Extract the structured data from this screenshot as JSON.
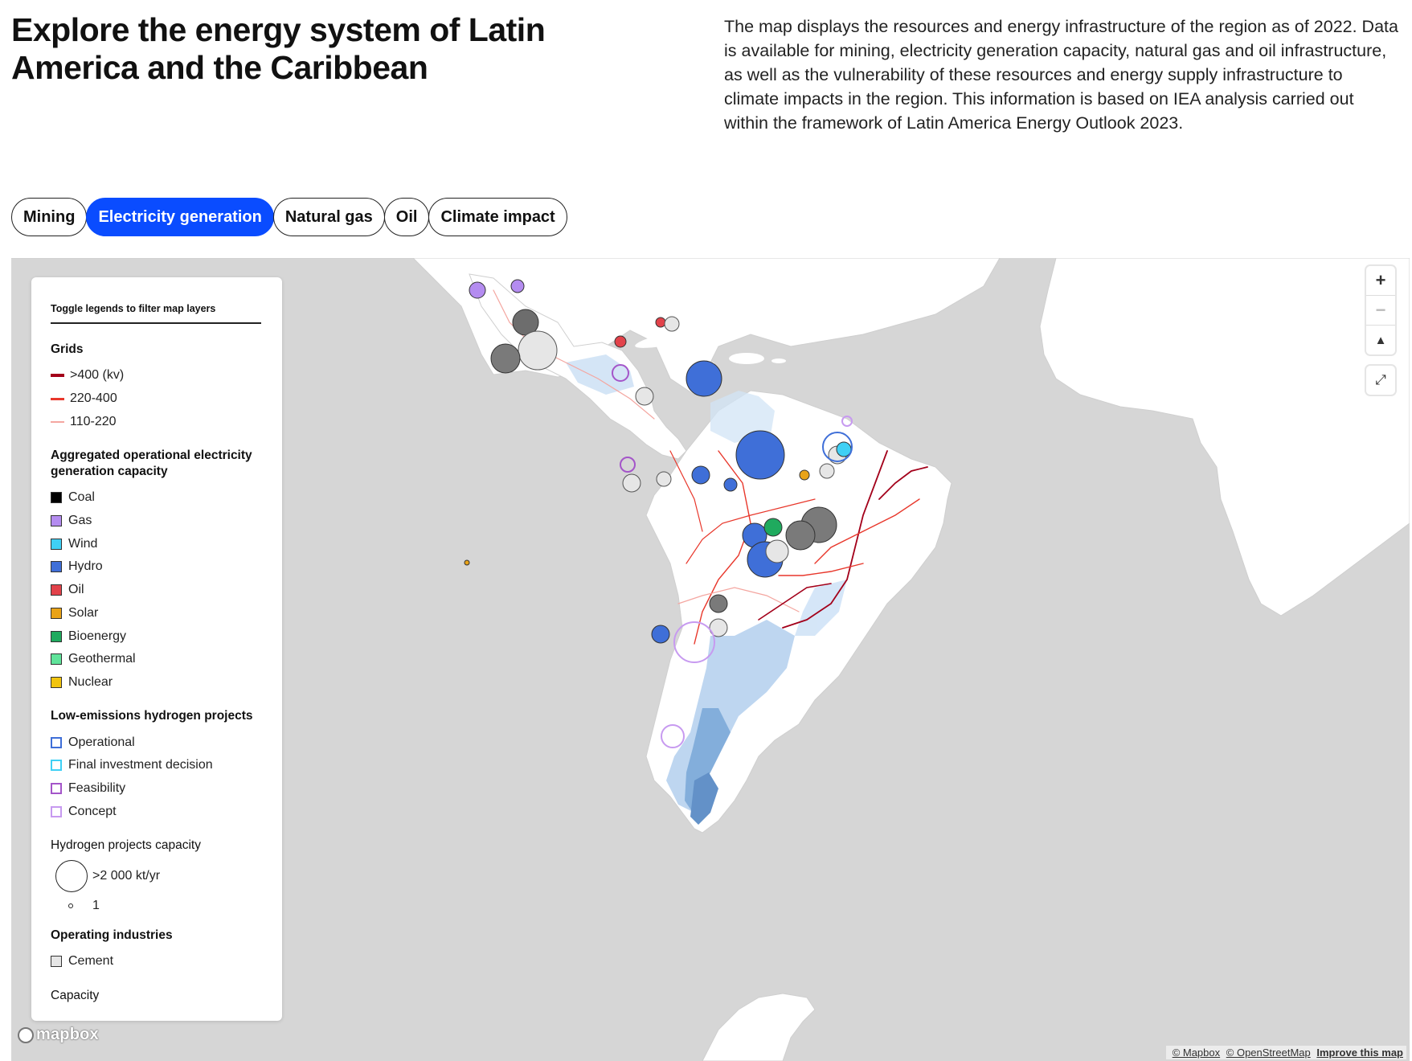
{
  "header": {
    "title": "Explore the energy system of Latin America and the Caribbean",
    "description": "The map displays the resources and energy infrastructure of the region as of 2022. Data is available for mining, electricity generation capacity, natural gas and oil infrastructure, as well as the vulnerability of these resources and energy supply infrastructure to climate impacts in the region. This information is based on IEA analysis carried out within the framework of Latin America Energy Outlook 2023."
  },
  "tabs": [
    {
      "label": "Mining",
      "active": false
    },
    {
      "label": "Electricity generation",
      "active": true
    },
    {
      "label": "Natural gas",
      "active": false
    },
    {
      "label": "Oil",
      "active": false
    },
    {
      "label": "Climate impact",
      "active": false
    }
  ],
  "legend": {
    "toggle_hint": "Toggle legends to filter map layers",
    "grids": {
      "title": "Grids",
      "items": [
        {
          "label": ">400 (kv)",
          "color": "#a3001a"
        },
        {
          "label": "220-400",
          "color": "#e8372b"
        },
        {
          "label": "110-220",
          "color": "#f4a6a0"
        }
      ]
    },
    "capacity": {
      "title": "Aggregated operational electricity generation capacity",
      "items": [
        {
          "label": "Coal",
          "color": "#000000"
        },
        {
          "label": "Gas",
          "color": "#b48cf0"
        },
        {
          "label": "Wind",
          "color": "#3fd0f5"
        },
        {
          "label": "Hydro",
          "color": "#3f6fd8"
        },
        {
          "label": "Oil",
          "color": "#e2424a"
        },
        {
          "label": "Solar",
          "color": "#e9a318"
        },
        {
          "label": "Bioenergy",
          "color": "#1faa5e"
        },
        {
          "label": "Geothermal",
          "color": "#5fe39a"
        },
        {
          "label": "Nuclear",
          "color": "#f1c40f"
        }
      ]
    },
    "hydrogen": {
      "title": "Low-emissions hydrogen projects",
      "items": [
        {
          "label": "Operational",
          "color": "#3f6fd8"
        },
        {
          "label": "Final investment decision",
          "color": "#3fd0f5"
        },
        {
          "label": "Feasibility",
          "color": "#a455c9"
        },
        {
          "label": "Concept",
          "color": "#c79af0"
        }
      ]
    },
    "hydrogen_capacity": {
      "title": "Hydrogen projects capacity",
      "max_label": ">2 000 kt/yr",
      "min_label": "1"
    },
    "industries": {
      "title": "Operating industries",
      "items": [
        {
          "label": "Cement",
          "color": "#e6e6e6"
        }
      ]
    },
    "next_section": "Capacity"
  },
  "map_controls": {
    "zoom_in": "+",
    "zoom_out": "−",
    "compass": "▲",
    "fullscreen": "⤢"
  },
  "attribution": {
    "logo": "mapbox",
    "mapbox": "© Mapbox",
    "osm": "© OpenStreetMap",
    "improve": "Improve this map"
  }
}
